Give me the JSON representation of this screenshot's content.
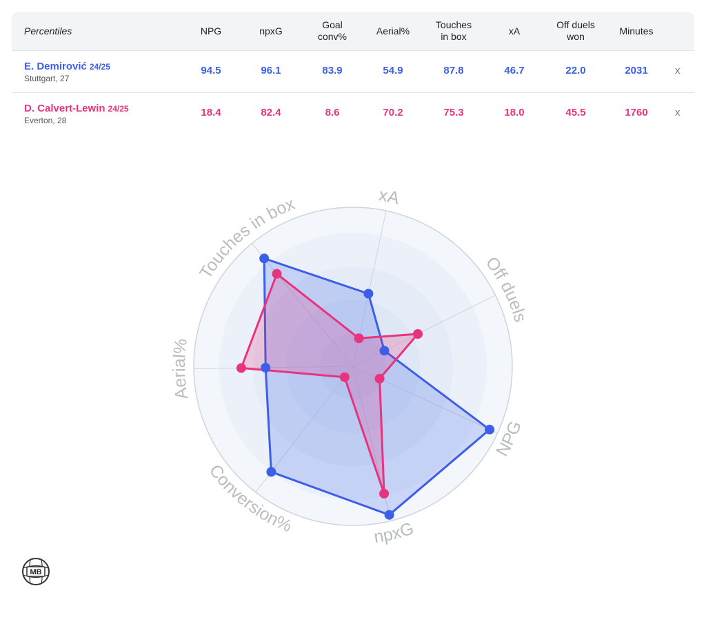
{
  "table": {
    "header_first": "Percentiles",
    "columns": [
      "NPG",
      "npxG",
      "Goal\nconv%",
      "Aerial%",
      "Touches\nin box",
      "xA",
      "Off duels\nwon",
      "Minutes"
    ],
    "remove_label": "x",
    "rows": [
      {
        "name": "E. Demirović",
        "season": "24/25",
        "sub": "Stuttgart, 27",
        "values": [
          "94.5",
          "96.1",
          "83.9",
          "54.9",
          "87.8",
          "46.7",
          "22.0",
          "2031"
        ]
      },
      {
        "name": "D. Calvert-Lewin",
        "season": "24/25",
        "sub": "Everton, 28",
        "values": [
          "18.4",
          "82.4",
          "8.6",
          "70.2",
          "75.3",
          "18.0",
          "45.5",
          "1760"
        ]
      }
    ]
  },
  "colors": {
    "series_a": "#3d5ee8",
    "series_b": "#e8337f"
  },
  "logo_text": "MB",
  "chart_data": {
    "type": "radar",
    "axes": [
      "xA",
      "Off duels",
      "NPG",
      "npxG",
      "Conversion%",
      "Aerial%",
      "Touches in box"
    ],
    "range": [
      0,
      100
    ],
    "series": [
      {
        "name": "E. Demirović",
        "values": [
          46.7,
          22.0,
          94.5,
          96.1,
          83.9,
          54.9,
          87.8
        ]
      },
      {
        "name": "D. Calvert-Lewin",
        "values": [
          18.0,
          45.5,
          18.4,
          82.4,
          8.6,
          70.2,
          75.3
        ]
      }
    ],
    "grid": true
  }
}
